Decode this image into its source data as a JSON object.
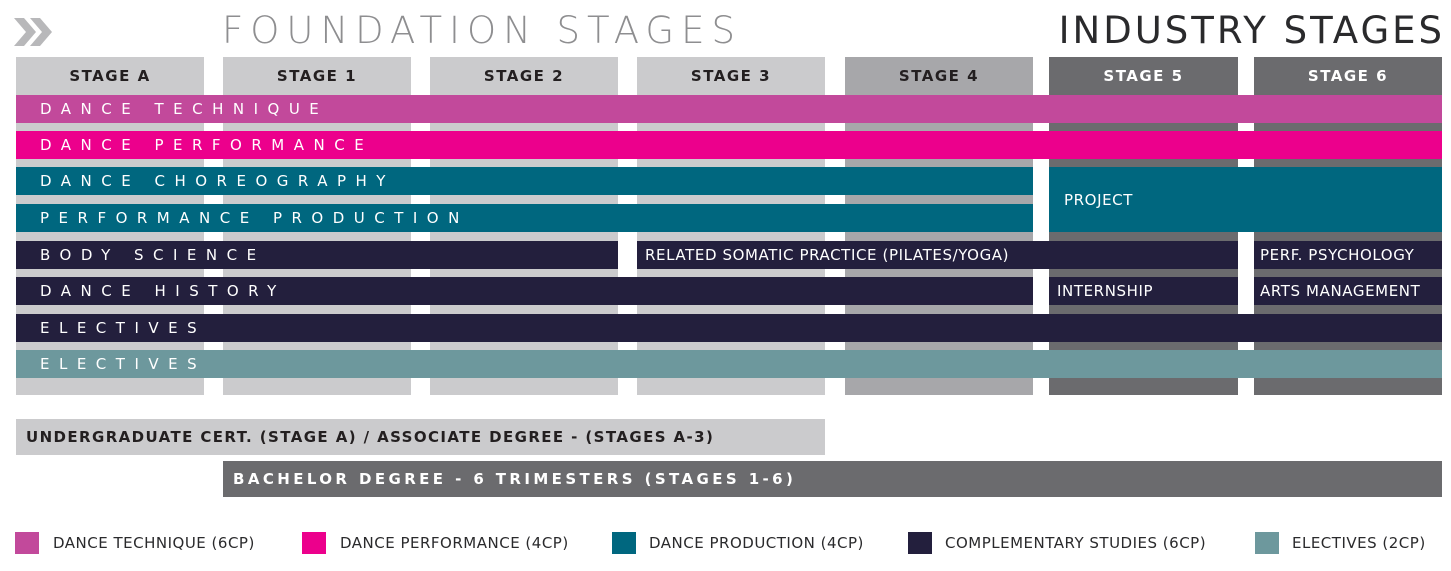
{
  "headers": {
    "foundation": "FOUNDATION STAGES",
    "industry": "INDUSTRY STAGES"
  },
  "stages": [
    "STAGE A",
    "STAGE 1",
    "STAGE 2",
    "STAGE 3",
    "STAGE 4",
    "STAGE 5",
    "STAGE 6"
  ],
  "rows": {
    "dance_technique": "DANCE TECHNIQUE",
    "dance_performance": "DANCE PERFORMANCE",
    "dance_choreography": "DANCE CHOREOGRAPHY",
    "performance_production": "PERFORMANCE PRODUCTION",
    "project": "PROJECT",
    "body_science": "BODY SCIENCE",
    "somatic": "RELATED SOMATIC PRACTICE (PILATES/YOGA)",
    "perf_psychology": "PERF. PSYCHOLOGY",
    "dance_history": "DANCE HISTORY",
    "internship": "INTERNSHIP",
    "arts_management": "ARTS MANAGEMENT",
    "electives_1": "ELECTIVES",
    "electives_2": "ELECTIVES"
  },
  "degrees": {
    "undergrad": "UNDERGRADUATE CERT. (STAGE A) / ASSOCIATE DEGREE - (STAGES A-3)",
    "bachelor": "BACHELOR DEGREE - 6 TRIMESTERS (STAGES 1-6)"
  },
  "legend": [
    {
      "label": "DANCE TECHNIQUE (6CP)",
      "color": "#c2499b"
    },
    {
      "label": "DANCE PERFORMANCE (4CP)",
      "color": "#ec008c"
    },
    {
      "label": "DANCE PRODUCTION (4CP)",
      "color": "#00677f"
    },
    {
      "label": "COMPLEMENTARY STUDIES (6CP)",
      "color": "#231f3d"
    },
    {
      "label": "ELECTIVES (2CP)",
      "color": "#6d989d"
    }
  ],
  "colors": {
    "foundation_col": "#cbcbcd",
    "stage4_col": "#a7a7aa",
    "industry_col": "#6b6b6e",
    "dance_technique": "#c2499b",
    "dance_performance": "#ec008c",
    "dance_production": "#00677f",
    "complementary": "#231f3d",
    "electives": "#6d989d"
  }
}
